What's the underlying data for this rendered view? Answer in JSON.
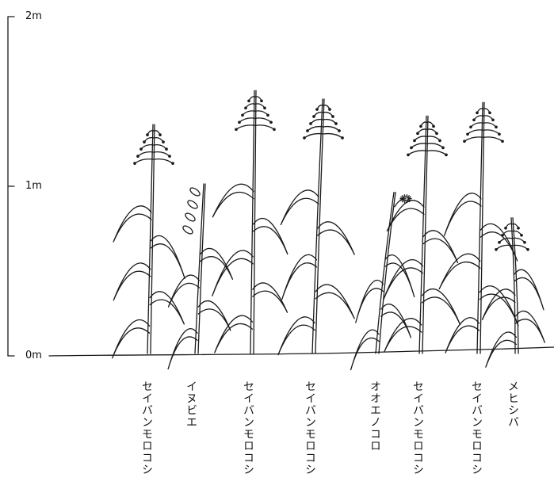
{
  "height_scale": {
    "max_label": "2m",
    "mid_label": "1m",
    "zero_label": "0m"
  },
  "plants": [
    {
      "id": "p1",
      "label": "セイバンモロコシ",
      "kind": "sorghum",
      "height_m": 1.35
    },
    {
      "id": "p2",
      "label": "イヌビエ",
      "kind": "barnyard",
      "height_m": 1.0
    },
    {
      "id": "p3",
      "label": "セイバンモロコシ",
      "kind": "sorghum",
      "height_m": 1.55
    },
    {
      "id": "p4",
      "label": "セイバンモロコシ",
      "kind": "sorghum",
      "height_m": 1.5
    },
    {
      "id": "p5",
      "label": "オオエノコロ",
      "kind": "foxtail",
      "height_m": 0.95
    },
    {
      "id": "p6",
      "label": "セイバンモロコシ",
      "kind": "sorghum",
      "height_m": 1.4
    },
    {
      "id": "p7",
      "label": "セイバンモロコシ",
      "kind": "sorghum",
      "height_m": 1.48
    },
    {
      "id": "p8",
      "label": "メヒシバ",
      "kind": "crabgrass",
      "height_m": 0.8
    }
  ]
}
